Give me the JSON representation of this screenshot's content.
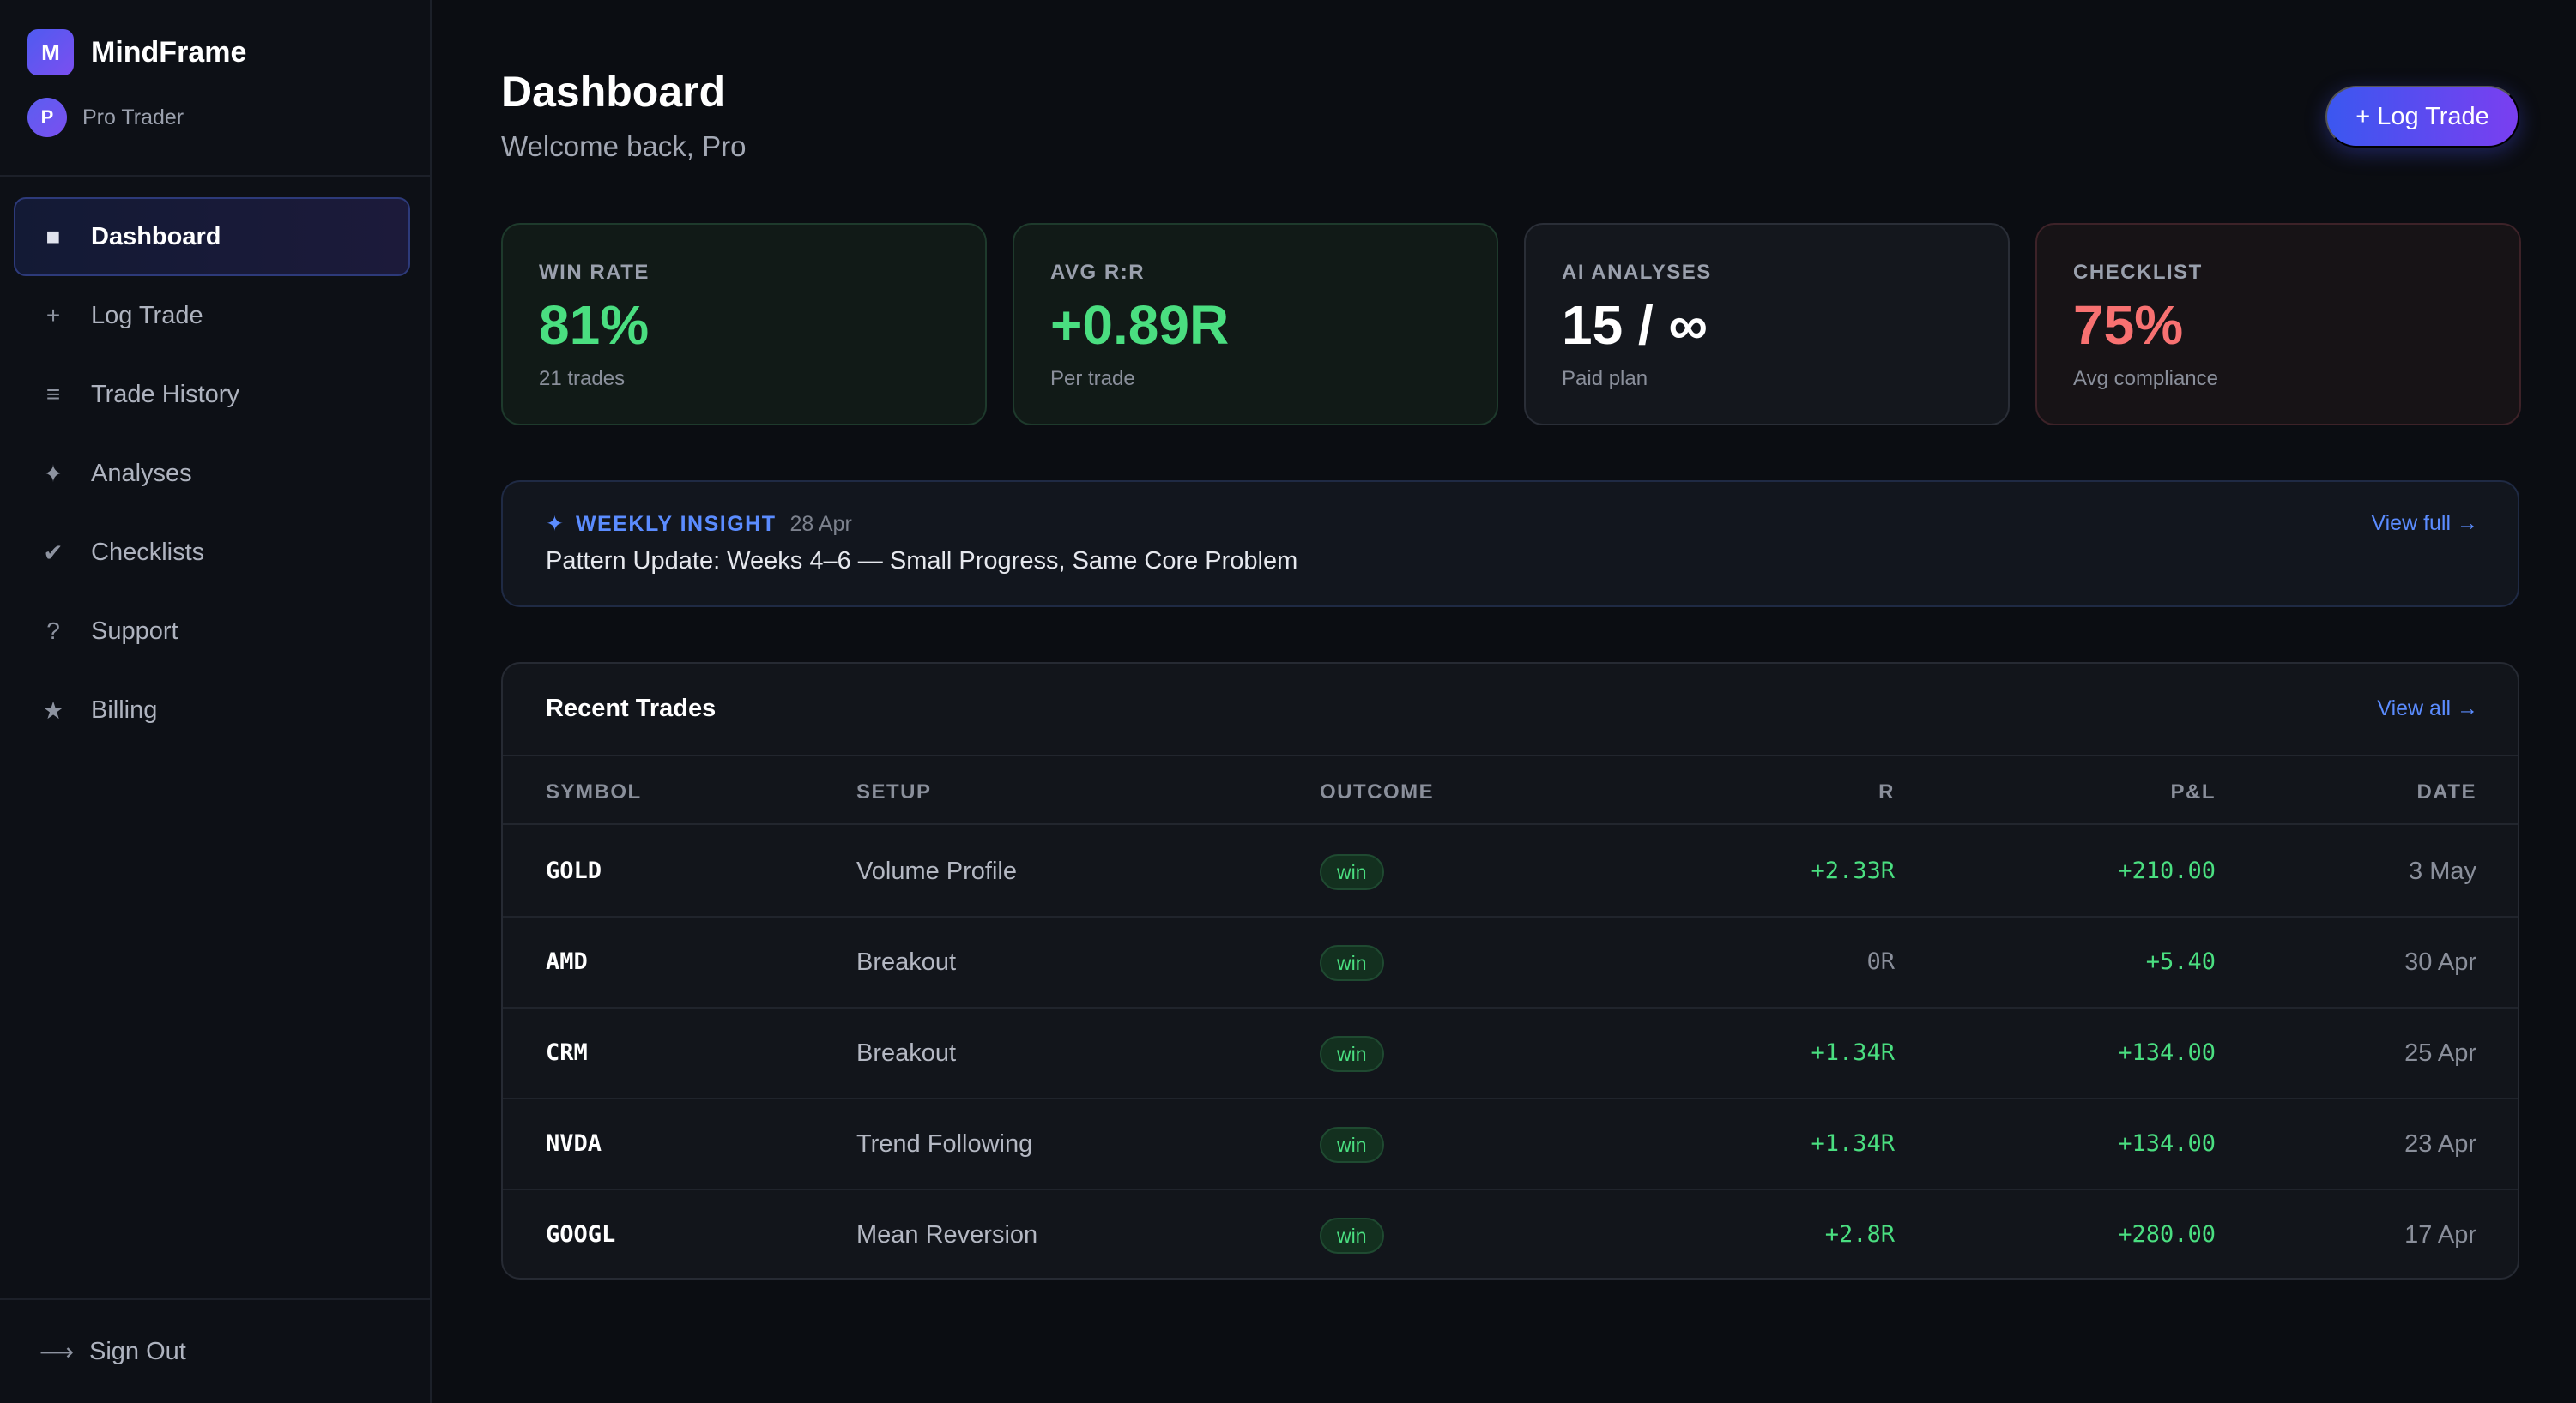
{
  "brand": {
    "logo_letter": "M",
    "name": "MindFrame"
  },
  "user": {
    "initial": "P",
    "name": "Pro Trader"
  },
  "nav": [
    {
      "icon": "■",
      "label": "Dashboard",
      "active": true
    },
    {
      "icon": "+",
      "label": "Log Trade"
    },
    {
      "icon": "≡",
      "label": "Trade History"
    },
    {
      "icon": "✦",
      "label": "Analyses"
    },
    {
      "icon": "✔",
      "label": "Checklists"
    },
    {
      "icon": "?",
      "label": "Support"
    },
    {
      "icon": "★",
      "label": "Billing"
    }
  ],
  "signout": {
    "icon": "⟶",
    "label": "Sign Out"
  },
  "header": {
    "title": "Dashboard",
    "subtitle": "Welcome back, Pro",
    "log_trade_label": "+ Log Trade"
  },
  "stats": [
    {
      "label": "WIN RATE",
      "value": "81%",
      "sub": "21 trades",
      "color": "#4ade80"
    },
    {
      "label": "AVG R:R",
      "value": "+0.89R",
      "sub": "Per trade",
      "color": "#4ade80"
    },
    {
      "label": "AI ANALYSES",
      "value": "15 / ∞",
      "sub": "Paid plan",
      "color": "#ffffff"
    },
    {
      "label": "CHECKLIST",
      "value": "75%",
      "sub": "Avg compliance",
      "color": "#f87171"
    }
  ],
  "insight": {
    "icon": "✦",
    "label": "WEEKLY INSIGHT",
    "date": "28 Apr",
    "title": "Pattern Update: Weeks 4–6 — Small Progress, Same Core Problem",
    "link": "View full →"
  },
  "trades": {
    "title": "Recent Trades",
    "link": "View all →",
    "columns": {
      "symbol": "SYMBOL",
      "setup": "SETUP",
      "outcome": "OUTCOME",
      "r": "R",
      "pnl": "P&L",
      "date": "DATE"
    },
    "rows": [
      {
        "symbol": "GOLD",
        "setup": "Volume Profile",
        "outcome": "win",
        "r": "+2.33R",
        "pnl": "+210.00",
        "date": "3 May"
      },
      {
        "symbol": "AMD",
        "setup": "Breakout",
        "outcome": "win",
        "r": "0R",
        "pnl": "+5.40",
        "date": "30 Apr"
      },
      {
        "symbol": "CRM",
        "setup": "Breakout",
        "outcome": "win",
        "r": "+1.34R",
        "pnl": "+134.00",
        "date": "25 Apr"
      },
      {
        "symbol": "NVDA",
        "setup": "Trend Following",
        "outcome": "win",
        "r": "+1.34R",
        "pnl": "+134.00",
        "date": "23 Apr"
      },
      {
        "symbol": "GOOGL",
        "setup": "Mean Reversion",
        "outcome": "win",
        "r": "+2.8R",
        "pnl": "+280.00",
        "date": "17 Apr"
      }
    ]
  }
}
